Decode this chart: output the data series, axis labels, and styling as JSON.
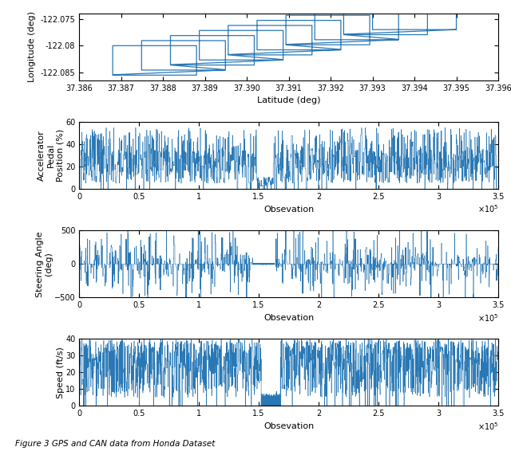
{
  "fig_width": 6.4,
  "fig_height": 5.66,
  "dpi": 100,
  "line_color": "#2878b5",
  "background": "white",
  "gps": {
    "xlabel": "Latitude (deg)",
    "ylabel": "Longitude (deg)",
    "xlim": [
      37.386,
      37.396
    ],
    "ylim": [
      -122.0865,
      -122.074
    ],
    "xticks": [
      37.386,
      37.387,
      37.388,
      37.389,
      37.39,
      37.391,
      37.392,
      37.393,
      37.394,
      37.395,
      37.396
    ],
    "yticks": [
      -122.085,
      -122.08,
      -122.075
    ],
    "yticklabels": [
      "-122.085",
      "-122.08",
      "-122.075"
    ]
  },
  "accel": {
    "ylabel": "Accelerator\nPedal\nPosition (%)",
    "xlabel": "Obsevation",
    "ylim": [
      0,
      60
    ],
    "yticks": [
      0,
      20,
      40,
      60
    ],
    "xlim": [
      0,
      350000
    ],
    "xticks": [
      0,
      50000,
      100000,
      150000,
      200000,
      250000,
      300000,
      350000
    ],
    "xticklabels": [
      "0",
      "0.5",
      "1",
      "1.5",
      "2",
      "2.5",
      "3",
      "3.5"
    ]
  },
  "steer": {
    "ylabel": "Steering Angle\n(deg)",
    "xlabel": "Obsevation",
    "ylim": [
      -500,
      500
    ],
    "yticks": [
      -500,
      0,
      500
    ],
    "xlim": [
      0,
      350000
    ],
    "xticks": [
      0,
      50000,
      100000,
      150000,
      200000,
      250000,
      300000,
      350000
    ],
    "xticklabels": [
      "0",
      "0.5",
      "1",
      "1.5",
      "2",
      "2.5",
      "3",
      "3.5"
    ]
  },
  "speed": {
    "ylabel": "Speed (ft/s)",
    "xlabel": "Obsevation",
    "ylim": [
      0,
      40
    ],
    "yticks": [
      0,
      10,
      20,
      30,
      40
    ],
    "xlim": [
      0,
      350000
    ],
    "xticks": [
      0,
      50000,
      100000,
      150000,
      200000,
      250000,
      300000,
      350000
    ],
    "xticklabels": [
      "0",
      "0.5",
      "1",
      "1.5",
      "2",
      "2.5",
      "3",
      "3.5"
    ]
  },
  "caption": "Figure 3 GPS and CAN data from Honda Dataset"
}
